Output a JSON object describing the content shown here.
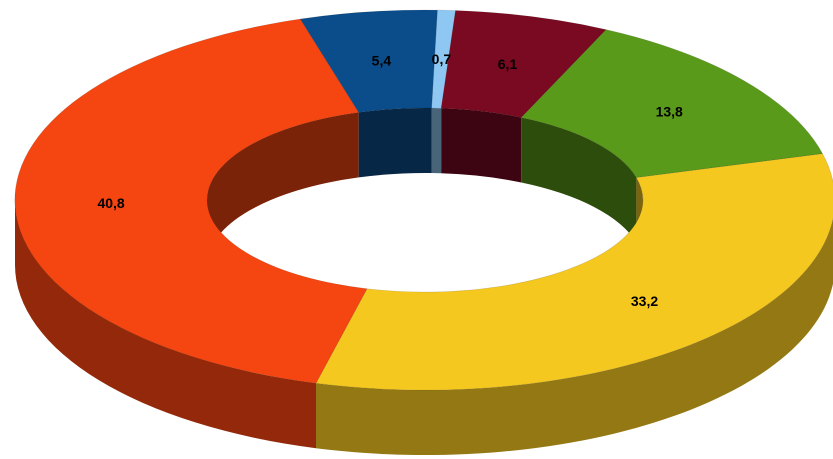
{
  "chart_data": {
    "type": "pie",
    "style": "3d-donut",
    "title": "",
    "legend": "none",
    "slices": [
      {
        "label": "0,7",
        "value": 0.7,
        "color": "#8ec8f2"
      },
      {
        "label": "6,1",
        "value": 6.1,
        "color": "#7a0a22"
      },
      {
        "label": "13,8",
        "value": 13.8,
        "color": "#5a9a1a"
      },
      {
        "label": "33,2",
        "value": 33.2,
        "color": "#f5c820"
      },
      {
        "label": "40,8",
        "value": 40.8,
        "color": "#f54510"
      },
      {
        "label": "5,4",
        "value": 5.4,
        "color": "#0b4d8a"
      }
    ]
  }
}
